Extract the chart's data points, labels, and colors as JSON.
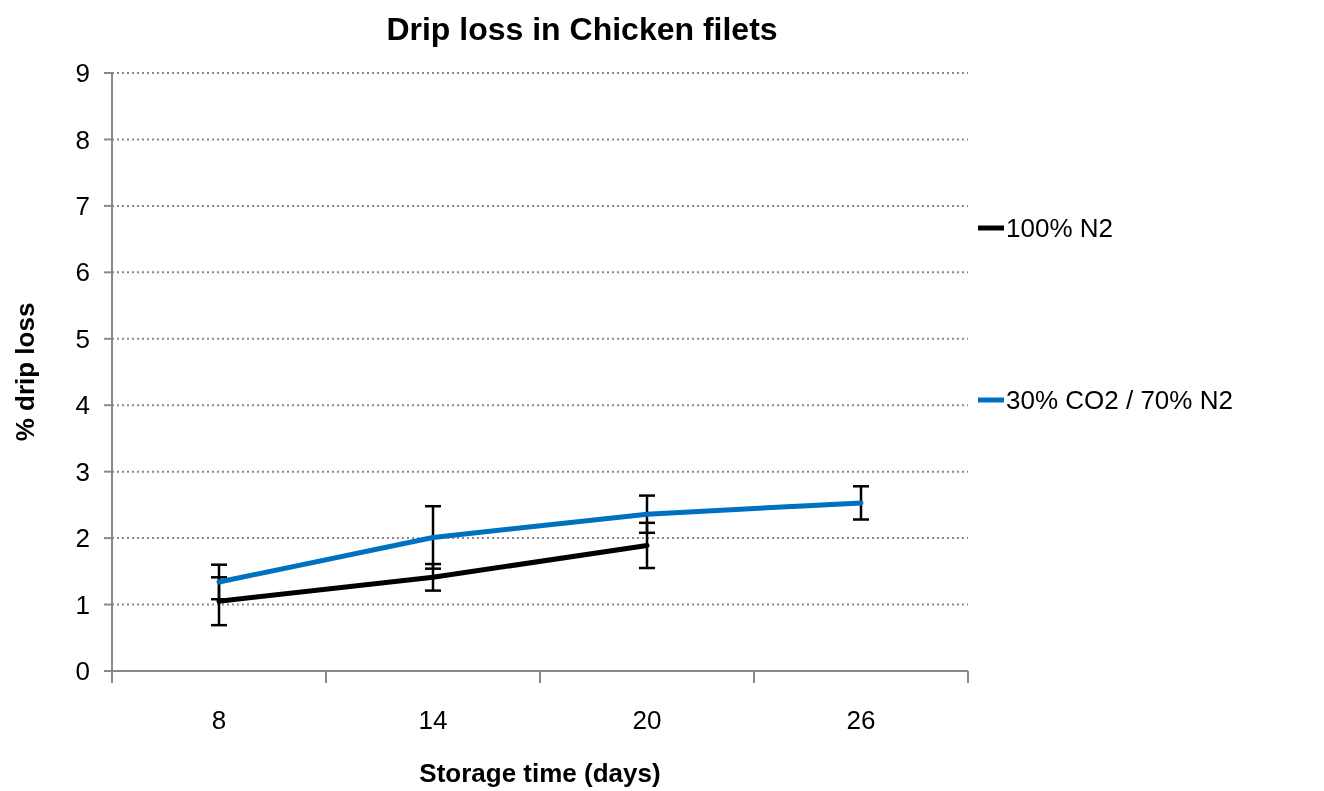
{
  "chart_data": {
    "type": "line",
    "title": "Drip loss  in Chicken filets",
    "xlabel": "Storage time (days)",
    "ylabel": "% drip loss",
    "categories": [
      "8",
      "14",
      "20",
      "26"
    ],
    "series": [
      {
        "name": "100%  N2",
        "color": "#000000",
        "values": [
          1.05,
          1.41,
          1.89,
          null
        ],
        "errors": [
          0.36,
          0.2,
          0.34,
          null
        ]
      },
      {
        "name": "30% CO2 / 70% N2",
        "color": "#0070c0",
        "values": [
          1.34,
          2.01,
          2.36,
          2.53
        ],
        "errors": [
          0.26,
          0.47,
          0.28,
          0.25
        ]
      }
    ],
    "ylim": [
      0,
      9
    ],
    "yticks": [
      0,
      1,
      2,
      3,
      4,
      5,
      6,
      7,
      8,
      9
    ],
    "grid": "y",
    "legend": "right",
    "marker": "none",
    "line_style": "solid"
  }
}
